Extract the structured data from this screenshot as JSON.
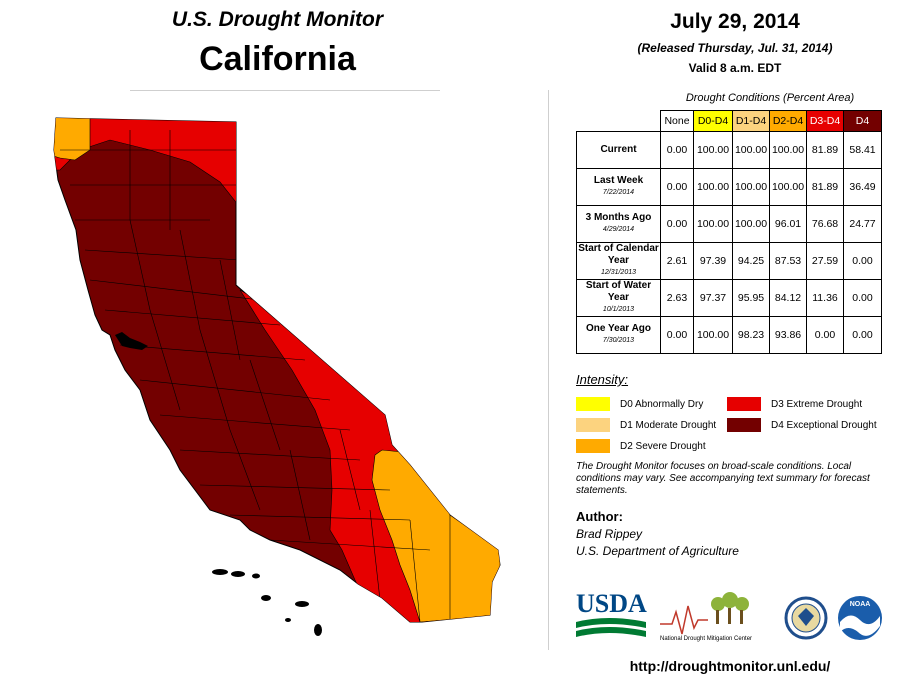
{
  "header": {
    "title": "U.S. Drought Monitor",
    "region": "California",
    "date": "July 29, 2014",
    "released": "(Released Thursday, Jul. 31, 2014)",
    "valid": "Valid 8 a.m. EDT"
  },
  "table": {
    "caption": "Drought Conditions (Percent Area)",
    "columns": [
      "None",
      "D0-D4",
      "D1-D4",
      "D2-D4",
      "D3-D4",
      "D4"
    ],
    "rows": [
      {
        "label": "Current",
        "sublabel": "",
        "values": [
          "0.00",
          "100.00",
          "100.00",
          "100.00",
          "81.89",
          "58.41"
        ]
      },
      {
        "label": "Last Week",
        "sublabel": "7/22/2014",
        "values": [
          "0.00",
          "100.00",
          "100.00",
          "100.00",
          "81.89",
          "36.49"
        ]
      },
      {
        "label": "3 Months Ago",
        "sublabel": "4/29/2014",
        "values": [
          "0.00",
          "100.00",
          "100.00",
          "96.01",
          "76.68",
          "24.77"
        ]
      },
      {
        "label": "Start of Calendar Year",
        "sublabel": "12/31/2013",
        "values": [
          "2.61",
          "97.39",
          "94.25",
          "87.53",
          "27.59",
          "0.00"
        ]
      },
      {
        "label": "Start of Water Year",
        "sublabel": "10/1/2013",
        "values": [
          "2.63",
          "97.37",
          "95.95",
          "84.12",
          "11.36",
          "0.00"
        ]
      },
      {
        "label": "One Year Ago",
        "sublabel": "7/30/2013",
        "values": [
          "0.00",
          "100.00",
          "98.23",
          "93.86",
          "0.00",
          "0.00"
        ]
      }
    ]
  },
  "legend": {
    "title": "Intensity:",
    "items": [
      {
        "code": "d0",
        "label": "D0 Abnormally Dry",
        "color": "#ffff00"
      },
      {
        "code": "d1",
        "label": "D1 Moderate Drought",
        "color": "#fcd37f"
      },
      {
        "code": "d2",
        "label": "D2 Severe Drought",
        "color": "#ffaa00"
      },
      {
        "code": "d3",
        "label": "D3 Extreme Drought",
        "color": "#e60000"
      },
      {
        "code": "d4",
        "label": "D4 Exceptional Drought",
        "color": "#730000"
      }
    ]
  },
  "note": "The Drought Monitor focuses on broad-scale conditions. Local conditions may vary. See accompanying text summary for forecast statements.",
  "author": {
    "heading": "Author:",
    "name": "Brad Rippey",
    "org": "U.S. Department of Agriculture"
  },
  "logos": {
    "usda": "USDA",
    "ndmc": "National Drought Mitigation Center",
    "noaa": "NOAA"
  },
  "url": "http://droughtmonitor.unl.edu/"
}
